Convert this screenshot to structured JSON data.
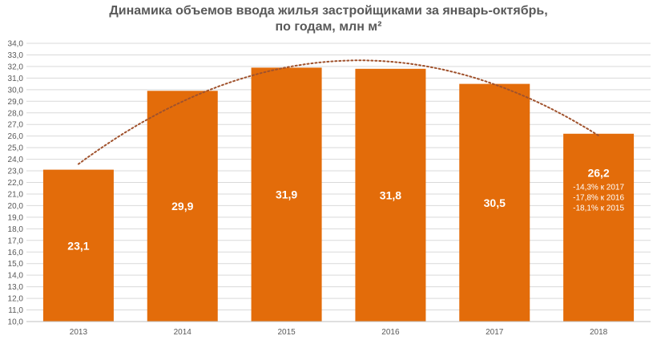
{
  "chart_data": {
    "type": "bar",
    "title_line1": "Динамика объемов ввода жилья застройщиками за январь-октябрь,",
    "title_line2": "по годам, млн м²",
    "categories": [
      "2013",
      "2014",
      "2015",
      "2016",
      "2017",
      "2018"
    ],
    "values": [
      23.1,
      29.9,
      31.9,
      31.8,
      30.5,
      26.2
    ],
    "value_labels": [
      "23,1",
      "29,9",
      "31,9",
      "31,8",
      "30,5",
      "26,2"
    ],
    "ylim": [
      10,
      34
    ],
    "y_ticks": [
      "10,0",
      "11,0",
      "12,0",
      "13,0",
      "14,0",
      "15,0",
      "16,0",
      "17,0",
      "18,0",
      "19,0",
      "20,0",
      "21,0",
      "22,0",
      "23,0",
      "24,0",
      "25,0",
      "26,0",
      "27,0",
      "28,0",
      "29,0",
      "30,0",
      "31,0",
      "32,0",
      "33,0",
      "34,0"
    ],
    "annotations": [
      "-14,3% к 2017",
      "-17,8% к 2016",
      "-18,1% к 2015"
    ],
    "trendline": "polynomial",
    "grid": true,
    "colors": {
      "bar": "#E36C0A",
      "trend": "#A0522D",
      "grid": "#D9D9D9",
      "text": "#595959"
    }
  }
}
